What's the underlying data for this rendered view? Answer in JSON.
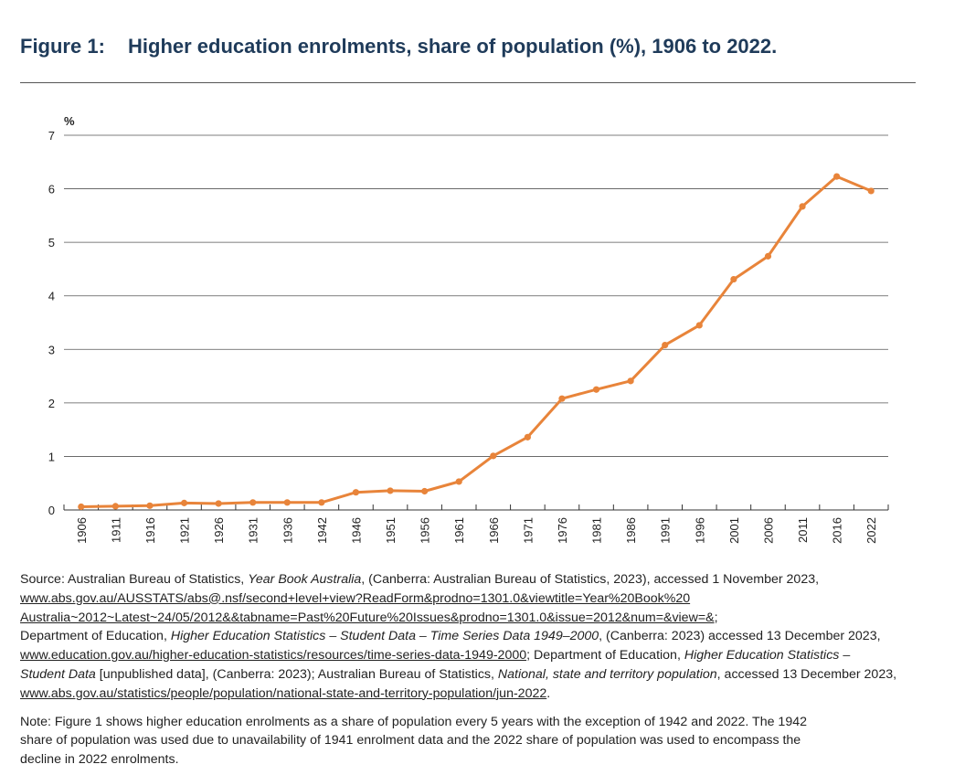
{
  "figure": {
    "label": "Figure 1:",
    "title": "Higher education enrolments, share of population (%), 1906 to 2022."
  },
  "chart_data": {
    "type": "line",
    "ylabel": "%",
    "xlabel": "",
    "ylim": [
      0,
      7
    ],
    "yticks": [
      0,
      1,
      2,
      3,
      4,
      5,
      6,
      7
    ],
    "grid": true,
    "categories": [
      "1906",
      "1911",
      "1916",
      "1921",
      "1926",
      "1931",
      "1936",
      "1942",
      "1946",
      "1951",
      "1956",
      "1961",
      "1966",
      "1971",
      "1976",
      "1981",
      "1986",
      "1991",
      "1996",
      "2001",
      "2006",
      "2011",
      "2016",
      "2022"
    ],
    "series": [
      {
        "values": [
          0.06,
          0.07,
          0.08,
          0.13,
          0.12,
          0.14,
          0.14,
          0.14,
          0.33,
          0.36,
          0.35,
          0.53,
          1.01,
          1.36,
          2.08,
          2.25,
          2.41,
          3.08,
          3.45,
          4.31,
          4.74,
          5.67,
          6.23,
          5.96
        ]
      }
    ],
    "line_color": "#e8843a"
  },
  "source": {
    "prefix": "Source: Australian Bureau of Statistics, ",
    "pub1": "Year Book Australia",
    "mid1": ", (Canberra: Australian Bureau of Statistics, 2023), accessed 1 November 2023,",
    "link1a": "www.abs.gov.au/AUSSTATS/abs@.nsf/second+level+view?ReadForm&prodno=1301.0&viewtitle=Year%20Book%20",
    "link1b": "Australia~2012~Latest~24/05/2012&&tabname=Past%20Future%20Issues&prodno=1301.0&issue=2012&num=&view=&",
    "sep1": ";",
    "dept1": "Department of Education, ",
    "pub2": "Higher Education Statistics – Student Data – Time Series Data 1949–2000",
    "mid2": ", (Canberra: 2023) accessed 13 December 2023,",
    "link2": "www.education.gov.au/higher-education-statistics/resources/time-series-data-1949-2000",
    "dept2": "; Department of Education, ",
    "pub3a": "Higher Education Statistics –",
    "pub3b": "Student Data",
    "mid3": " [unpublished data], (Canberra: 2023); Australian Bureau of Statistics, ",
    "pub4": "National, state and territory population",
    "mid4": ", accessed 13 December 2023,",
    "link3": "www.abs.gov.au/statistics/people/population/national-state-and-territory-population/jun-2022",
    "end": "."
  },
  "note": {
    "line1": "Note: Figure 1 shows higher education enrolments as a share of population every 5 years with the exception of 1942 and 2022. The 1942",
    "line2": "share of population was used due to unavailability of 1941 enrolment data and the 2022 share of population was used to encompass the",
    "line3": "decline in 2022 enrolments."
  }
}
